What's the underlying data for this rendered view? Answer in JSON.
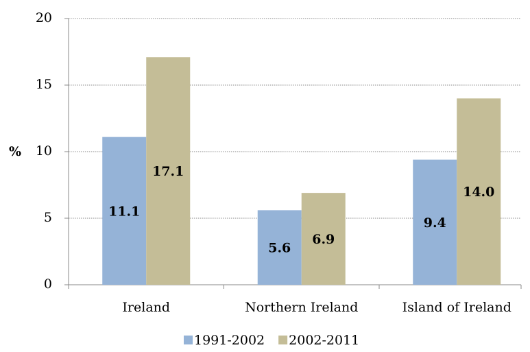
{
  "chart_data": {
    "type": "bar",
    "ylabel": "%",
    "categories": [
      "Ireland",
      "Northern Ireland",
      "Island of Ireland"
    ],
    "series": [
      {
        "name": "1991-2002",
        "color": "#95b3d7",
        "values": [
          11.1,
          5.6,
          9.4
        ],
        "value_labels": [
          "11.1",
          "5.6",
          "9.4"
        ]
      },
      {
        "name": "2002-2011",
        "color": "#c4bd97",
        "values": [
          17.1,
          6.9,
          14.0
        ],
        "value_labels": [
          "17.1",
          "6.9",
          "14.0"
        ]
      }
    ],
    "ylim": [
      0,
      20
    ],
    "yticks": [
      0,
      5,
      10,
      15,
      20
    ],
    "grid": true,
    "legend": "bottom"
  }
}
